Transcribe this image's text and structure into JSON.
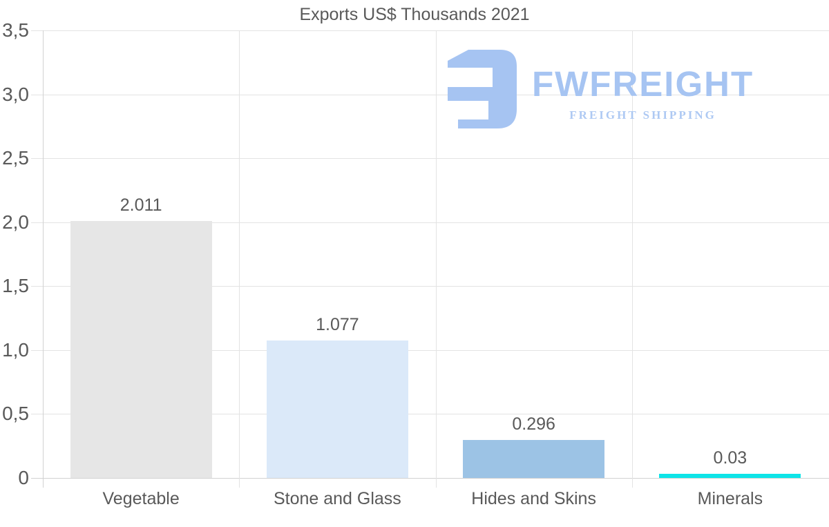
{
  "chart_data": {
    "type": "bar",
    "title": "Exports US$ Thousands 2021",
    "categories": [
      "Vegetable",
      "Stone and Glass",
      "Hides and Skins",
      "Minerals"
    ],
    "values": [
      2.011,
      1.077,
      0.296,
      0.03
    ],
    "value_labels": [
      "2.011",
      "1.077",
      "0.296",
      "0.03"
    ],
    "bar_colors": [
      "#e6e6e6",
      "#dbe9f9",
      "#9cc3e5",
      "#0ee4e8"
    ],
    "xlabel": "",
    "ylabel": "",
    "ylim": [
      0,
      3.5
    ],
    "y_ticks": [
      {
        "value": 3.5,
        "label": "3,5"
      },
      {
        "value": 3.0,
        "label": "3,0"
      },
      {
        "value": 2.5,
        "label": "2,5"
      },
      {
        "value": 2.0,
        "label": "2,0"
      },
      {
        "value": 1.5,
        "label": "1,5"
      },
      {
        "value": 1.0,
        "label": "1,0"
      },
      {
        "value": 0.5,
        "label": "0,5"
      },
      {
        "value": 0,
        "label": "0"
      }
    ],
    "grid": true,
    "legend": false
  },
  "watermark": {
    "brand": "FWFREIGHT",
    "tagline": "FREIGHT SHIPPING",
    "color": "#a6c4f2"
  },
  "colors": {
    "text": "#595959",
    "gridline": "#e3e3e3",
    "axis": "#d2d2d2",
    "background": "#ffffff"
  }
}
